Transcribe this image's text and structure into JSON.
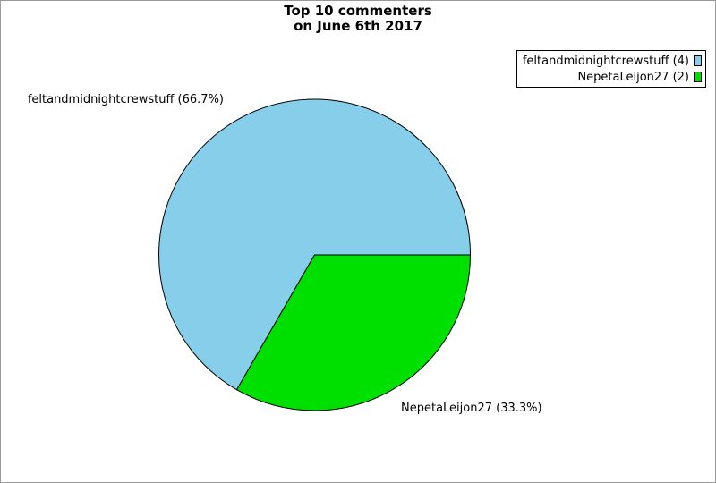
{
  "window": {
    "background": "#ffffff",
    "border_color": "#999999"
  },
  "title": {
    "line1": "Top 10 commenters",
    "line2": "on June 6th 2017"
  },
  "legend": {
    "position": "top-right",
    "items": [
      {
        "label": "feltandmidnightcrewstuff (4)",
        "color": "#87CEEB"
      },
      {
        "label": "NepetaLeijon27 (2)",
        "color": "#00E000"
      }
    ]
  },
  "chart_data": {
    "type": "pie",
    "title": "Top 10 commenters on June 6th 2017",
    "slices": [
      {
        "label": "feltandmidnightcrewstuff",
        "count": 4,
        "percent": 66.7,
        "color": "#87CEEB",
        "callout": "feltandmidnightcrewstuff (66.7%)",
        "legend_label": "feltandmidnightcrewstuff (4)"
      },
      {
        "label": "NepetaLeijon27",
        "count": 2,
        "percent": 33.3,
        "color": "#00E000",
        "callout": "NepetaLeijon27 (33.3%)",
        "legend_label": "NepetaLeijon27 (2)"
      }
    ],
    "start_angle_deg": 0,
    "direction": "counterclockwise",
    "stroke": "#000000",
    "legend_position": "top-right",
    "grid": false
  }
}
